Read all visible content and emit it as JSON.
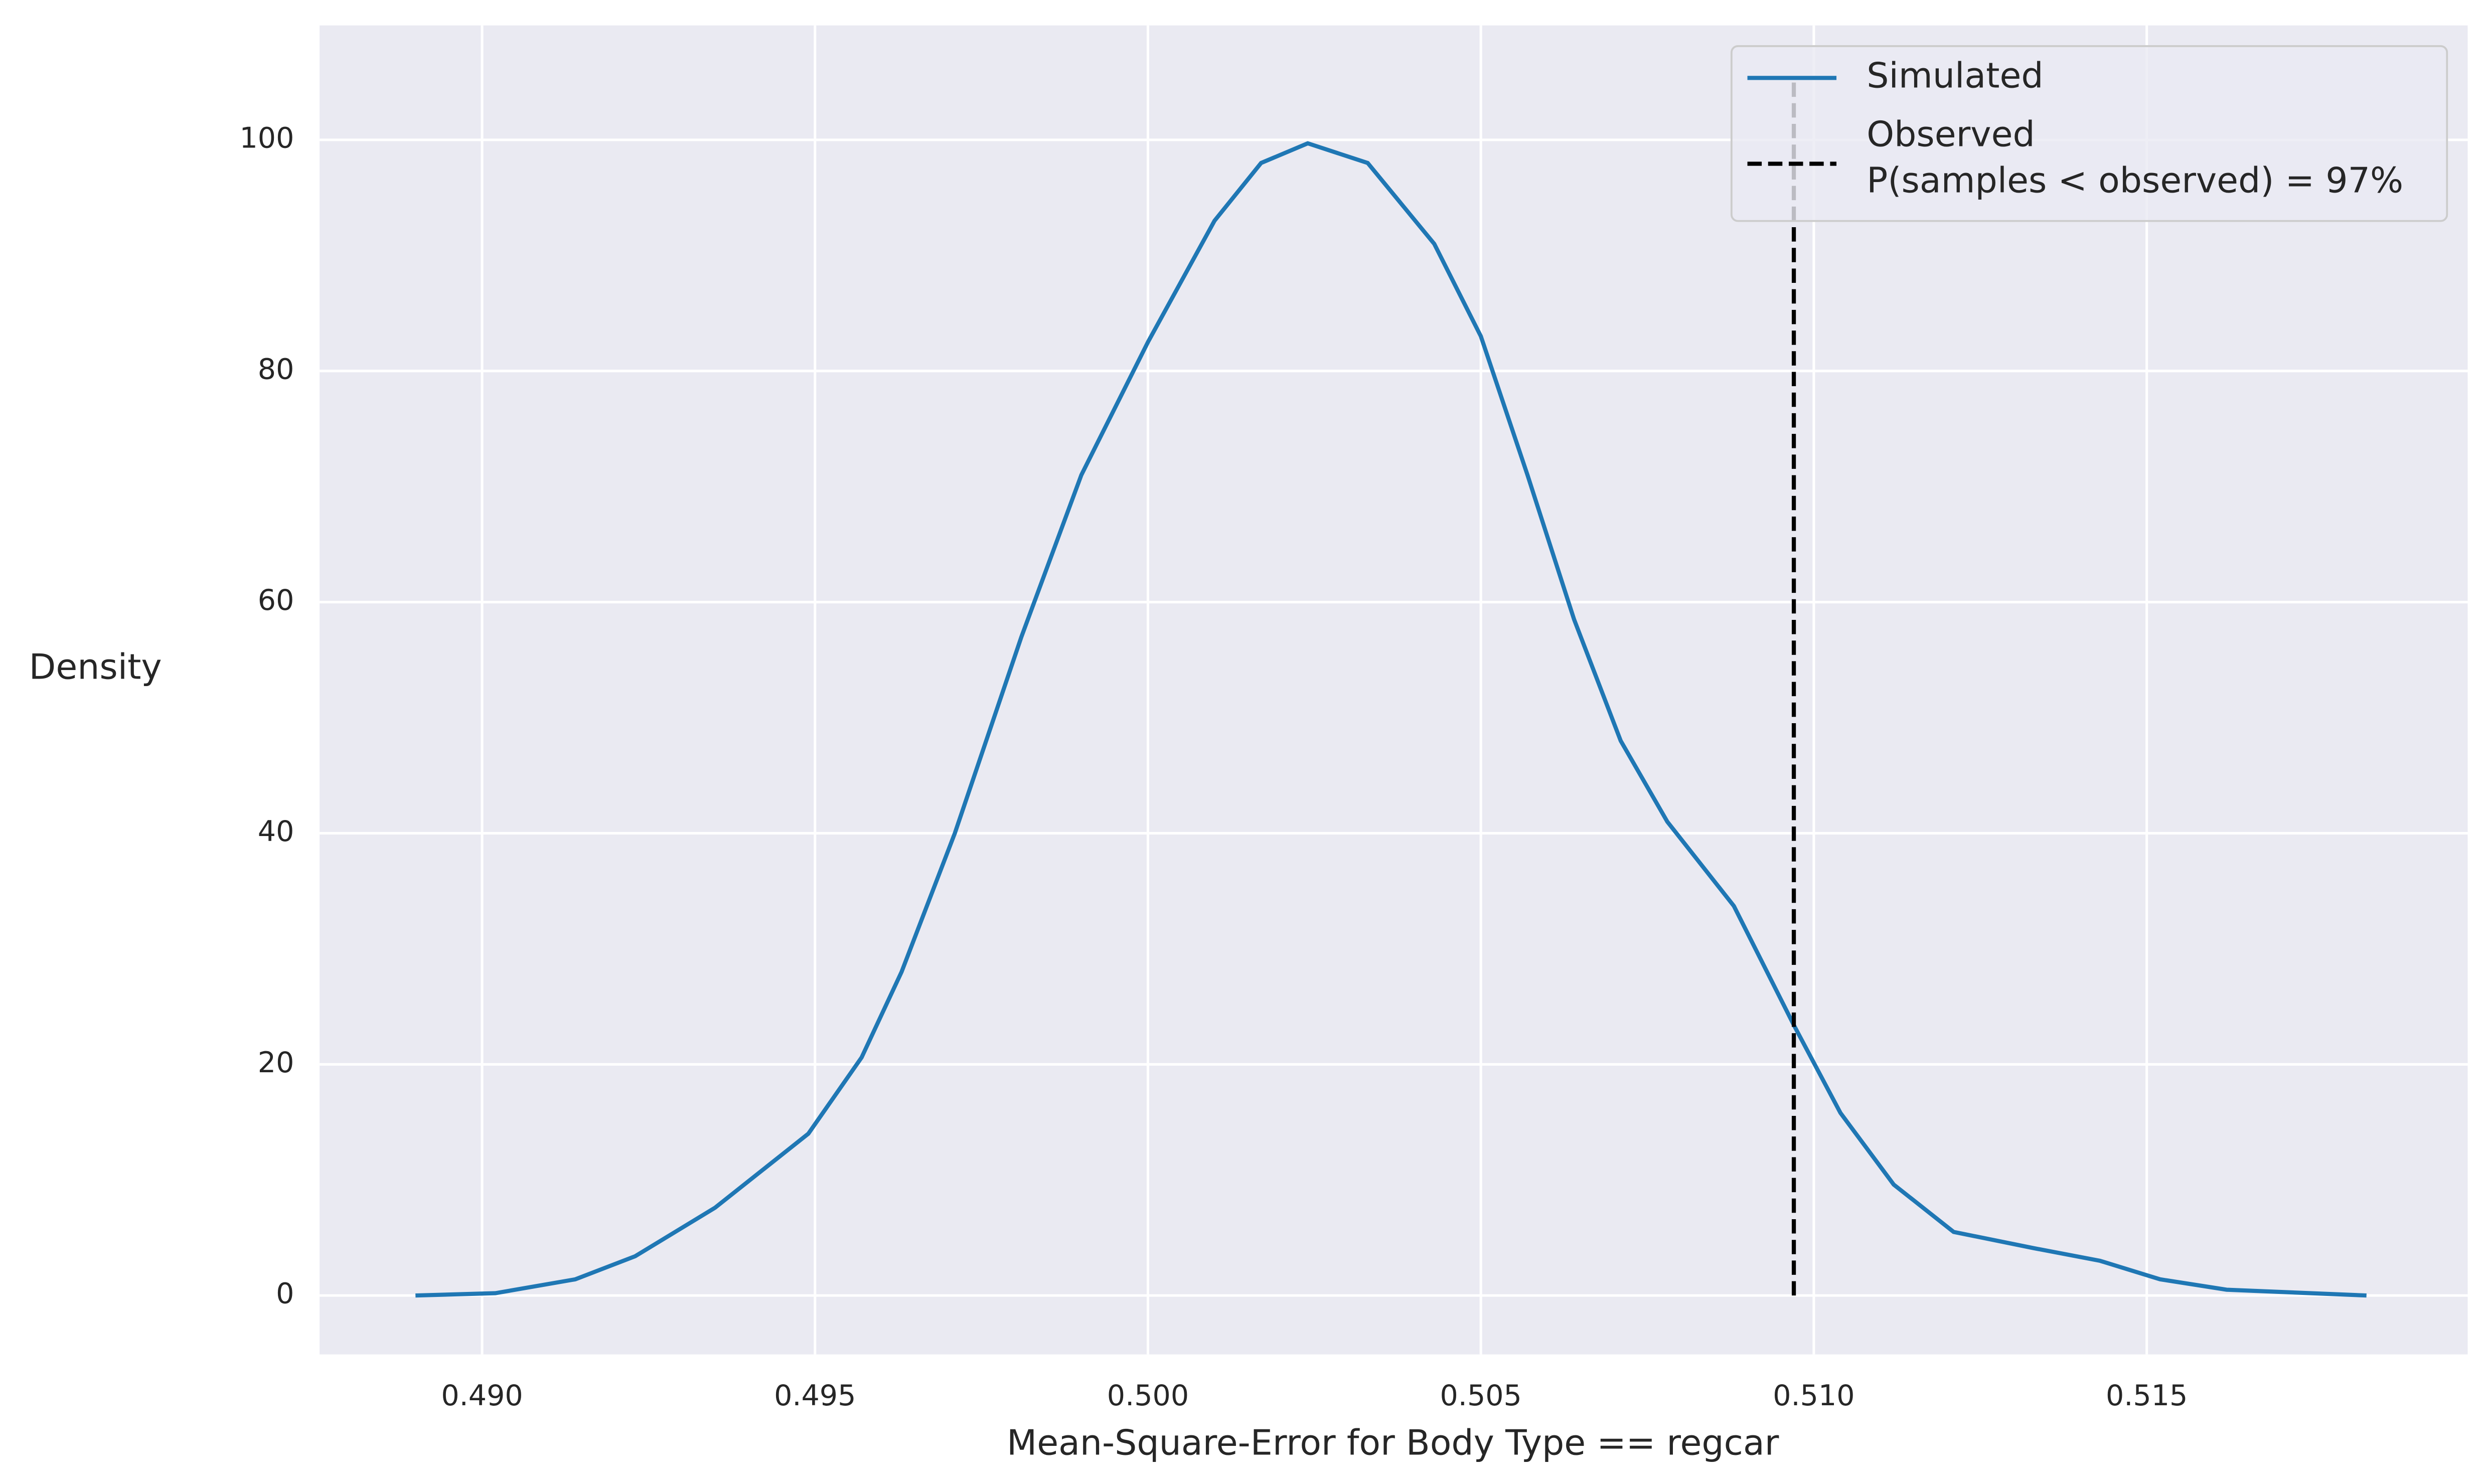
{
  "chart_data": {
    "type": "line",
    "xlabel": "Mean-Square-Error for Body Type == regcar",
    "ylabel": "Density",
    "x": [
      0.489,
      0.4902,
      0.4914,
      0.4923,
      0.4935,
      0.4949,
      0.4957,
      0.4963,
      0.4971,
      0.4981,
      0.499,
      0.5,
      0.501,
      0.5017,
      0.5024,
      0.5033,
      0.5043,
      0.505,
      0.5057,
      0.5064,
      0.5071,
      0.5078,
      0.5088,
      0.5097,
      0.5104,
      0.5112,
      0.5121,
      0.5133,
      0.5143,
      0.5152,
      0.5162,
      0.5183
    ],
    "series": [
      {
        "name": "Simulated",
        "color": "#1f77b4",
        "values": [
          0,
          0.2,
          1.4,
          3.4,
          7.6,
          14,
          20.6,
          28,
          40,
          57,
          71,
          82.5,
          93,
          98,
          99.7,
          98,
          91,
          83,
          71,
          58.5,
          48,
          41,
          33.7,
          23.4,
          15.8,
          9.6,
          5.5,
          4.1,
          3,
          1.4,
          0.5,
          0
        ]
      }
    ],
    "observed": {
      "name": "Observed\nP(samples < observed) = 97%",
      "color": "#000000",
      "x": 0.5097,
      "ymin": 0,
      "ymax": 105
    },
    "xlim": [
      0.48756,
      0.51982
    ],
    "ylim": [
      -5.1,
      109.9
    ],
    "xticks": [
      {
        "value": 0.49,
        "label": "0.490"
      },
      0.495,
      {
        "value": 0.5,
        "label": "0.500"
      },
      0.505,
      {
        "value": 0.51,
        "label": "0.510"
      },
      0.515
    ],
    "yticks": [
      0,
      20,
      40,
      60,
      80,
      100
    ],
    "grid": true,
    "legend": "upper right"
  }
}
